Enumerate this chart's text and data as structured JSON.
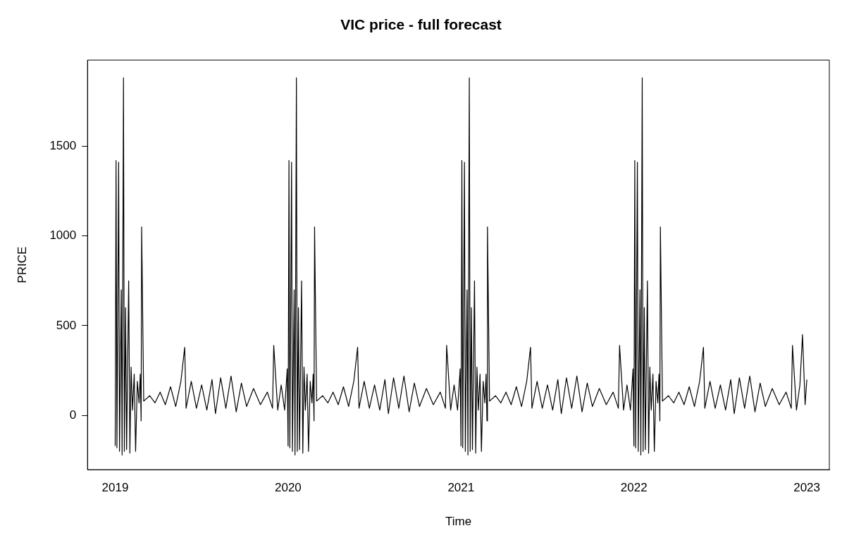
{
  "chart_data": {
    "type": "line",
    "title": "VIC price - full forecast",
    "xlabel": "Time",
    "ylabel": "PRICE",
    "xlim": [
      2018.84,
      2023.13
    ],
    "xticks": [
      2019,
      2020,
      2021,
      2022,
      2023
    ],
    "ylim": [
      -302,
      1979
    ],
    "yticks": [
      0,
      500,
      1000,
      1500
    ],
    "grid": false,
    "legend": false,
    "marker": "none",
    "line_style": "solid",
    "series": [
      {
        "color": "#000000",
        "x": [
          2019.0,
          2019.005,
          2019.01,
          2019.02,
          2019.025,
          2019.035,
          2019.04,
          2019.048,
          2019.053,
          2019.06,
          2019.066,
          2019.078,
          2019.085,
          2019.092,
          2019.1,
          2019.11,
          2019.118,
          2019.128,
          2019.138,
          2019.145,
          2019.15,
          2019.153,
          2019.165,
          2019.2,
          2019.23,
          2019.26,
          2019.29,
          2019.32,
          2019.35,
          2019.38,
          2019.402,
          2019.41,
          2019.44,
          2019.47,
          2019.5,
          2019.53,
          2019.56,
          2019.58,
          2019.61,
          2019.64,
          2019.67,
          2019.7,
          2019.73,
          2019.76,
          2019.8,
          2019.84,
          2019.88,
          2019.91,
          2019.917,
          2019.94,
          2019.96,
          2019.98,
          2019.995,
          2020.0,
          2020.005,
          2020.01,
          2020.02,
          2020.025,
          2020.035,
          2020.04,
          2020.048,
          2020.053,
          2020.06,
          2020.066,
          2020.078,
          2020.085,
          2020.092,
          2020.1,
          2020.11,
          2020.118,
          2020.128,
          2020.138,
          2020.145,
          2020.15,
          2020.153,
          2020.165,
          2020.2,
          2020.23,
          2020.26,
          2020.29,
          2020.32,
          2020.35,
          2020.38,
          2020.402,
          2020.41,
          2020.44,
          2020.47,
          2020.5,
          2020.53,
          2020.56,
          2020.58,
          2020.61,
          2020.64,
          2020.67,
          2020.7,
          2020.73,
          2020.76,
          2020.8,
          2020.84,
          2020.88,
          2020.91,
          2020.917,
          2020.94,
          2020.96,
          2020.98,
          2020.995,
          2021.0,
          2021.005,
          2021.01,
          2021.02,
          2021.025,
          2021.035,
          2021.04,
          2021.048,
          2021.053,
          2021.06,
          2021.066,
          2021.078,
          2021.085,
          2021.092,
          2021.1,
          2021.11,
          2021.118,
          2021.128,
          2021.138,
          2021.145,
          2021.15,
          2021.153,
          2021.165,
          2021.2,
          2021.23,
          2021.26,
          2021.29,
          2021.32,
          2021.35,
          2021.38,
          2021.402,
          2021.41,
          2021.44,
          2021.47,
          2021.5,
          2021.53,
          2021.56,
          2021.58,
          2021.61,
          2021.64,
          2021.67,
          2021.7,
          2021.73,
          2021.76,
          2021.8,
          2021.84,
          2021.88,
          2021.91,
          2021.917,
          2021.94,
          2021.96,
          2021.98,
          2021.995,
          2022.0,
          2022.005,
          2022.01,
          2022.02,
          2022.025,
          2022.035,
          2022.04,
          2022.048,
          2022.053,
          2022.06,
          2022.066,
          2022.078,
          2022.085,
          2022.092,
          2022.1,
          2022.11,
          2022.118,
          2022.128,
          2022.138,
          2022.145,
          2022.15,
          2022.153,
          2022.165,
          2022.2,
          2022.23,
          2022.26,
          2022.29,
          2022.32,
          2022.35,
          2022.38,
          2022.402,
          2022.41,
          2022.44,
          2022.47,
          2022.5,
          2022.53,
          2022.56,
          2022.58,
          2022.61,
          2022.64,
          2022.67,
          2022.7,
          2022.73,
          2022.76,
          2022.8,
          2022.84,
          2022.88,
          2022.91,
          2022.917,
          2022.94,
          2022.96,
          2022.975,
          2022.99,
          2023.0
        ],
        "values": [
          -170,
          1420,
          -180,
          1410,
          -200,
          700,
          -220,
          1880,
          -200,
          600,
          -190,
          750,
          -210,
          270,
          30,
          230,
          -200,
          190,
          70,
          230,
          -30,
          1050,
          80,
          110,
          70,
          130,
          60,
          160,
          50,
          190,
          380,
          40,
          190,
          40,
          170,
          30,
          200,
          10,
          210,
          40,
          220,
          20,
          180,
          50,
          150,
          60,
          130,
          40,
          390,
          30,
          170,
          30,
          260,
          -170,
          1420,
          -180,
          1410,
          -200,
          700,
          -220,
          1880,
          -200,
          600,
          -190,
          750,
          -210,
          270,
          30,
          230,
          -200,
          190,
          70,
          230,
          -30,
          1050,
          80,
          110,
          70,
          130,
          60,
          160,
          50,
          190,
          380,
          40,
          190,
          40,
          170,
          30,
          200,
          10,
          210,
          40,
          220,
          20,
          180,
          50,
          150,
          60,
          130,
          40,
          390,
          30,
          170,
          30,
          260,
          -170,
          1420,
          -180,
          1410,
          -200,
          700,
          -220,
          1880,
          -200,
          600,
          -190,
          750,
          -210,
          270,
          30,
          230,
          -200,
          190,
          70,
          230,
          -30,
          1050,
          80,
          110,
          70,
          130,
          60,
          160,
          50,
          190,
          380,
          40,
          190,
          40,
          170,
          30,
          200,
          10,
          210,
          40,
          220,
          20,
          180,
          50,
          150,
          60,
          130,
          40,
          390,
          30,
          170,
          30,
          260,
          -170,
          1420,
          -180,
          1410,
          -200,
          700,
          -220,
          1880,
          -200,
          600,
          -190,
          750,
          -210,
          270,
          30,
          230,
          -200,
          190,
          70,
          230,
          -30,
          1050,
          80,
          110,
          70,
          130,
          60,
          160,
          50,
          190,
          380,
          40,
          190,
          40,
          170,
          30,
          200,
          10,
          210,
          40,
          220,
          20,
          180,
          50,
          150,
          60,
          130,
          40,
          390,
          30,
          170,
          450,
          60,
          200
        ]
      }
    ]
  }
}
